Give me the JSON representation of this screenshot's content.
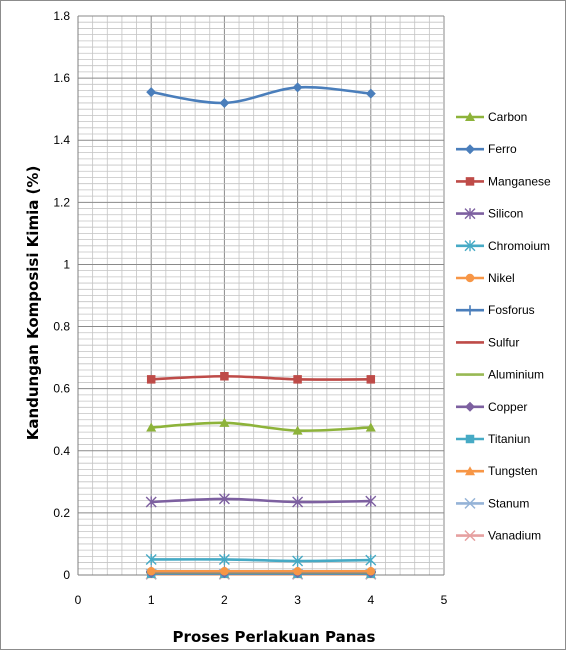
{
  "chart_data": {
    "type": "scatter",
    "xlabel": "Proses Perlakuan Panas",
    "ylabel": "Kandungan Komposisi Kimia (%)",
    "xlim": [
      0,
      5
    ],
    "ylim": [
      0,
      1.8
    ],
    "x_ticks": [
      "0",
      "1",
      "2",
      "3",
      "4",
      "5"
    ],
    "y_ticks": [
      "0",
      "0.2",
      "0.4",
      "0.6",
      "0.8",
      "1",
      "1.2",
      "1.4",
      "1.6",
      "1.8"
    ],
    "grid": true,
    "minor_grid": true,
    "legend_position": "right",
    "x": [
      1,
      2,
      3,
      4
    ],
    "series": [
      {
        "name": "Carbon",
        "values": [
          0.475,
          0.49,
          0.465,
          0.475
        ],
        "color": "#8db33a",
        "marker": "triangle"
      },
      {
        "name": "Ferro",
        "values": [
          1.555,
          1.52,
          1.57,
          1.55
        ],
        "color": "#4a7ebb",
        "marker": "diamond"
      },
      {
        "name": "Manganese",
        "values": [
          0.63,
          0.64,
          0.63,
          0.63
        ],
        "color": "#be4b48",
        "marker": "square"
      },
      {
        "name": "Silicon",
        "values": [
          0.235,
          0.245,
          0.235,
          0.238
        ],
        "color": "#7d60a0",
        "marker": "xstar"
      },
      {
        "name": "Chromoium",
        "values": [
          0.05,
          0.05,
          0.045,
          0.048
        ],
        "color": "#46aac5",
        "marker": "xstar"
      },
      {
        "name": "Nikel",
        "values": [
          0.012,
          0.012,
          0.012,
          0.012
        ],
        "color": "#f79646",
        "marker": "circle"
      },
      {
        "name": "Fosforus",
        "values": [
          0.01,
          0.01,
          0.01,
          0.01
        ],
        "color": "#4a7ebb",
        "marker": "plus"
      },
      {
        "name": "Sulfur",
        "values": [
          0.01,
          0.01,
          0.01,
          0.01
        ],
        "color": "#be4b48",
        "marker": "dash"
      },
      {
        "name": "Aluminium",
        "values": [
          0.008,
          0.008,
          0.008,
          0.008
        ],
        "color": "#98b954",
        "marker": "dash"
      },
      {
        "name": "Copper",
        "values": [
          0.006,
          0.006,
          0.006,
          0.006
        ],
        "color": "#7d60a0",
        "marker": "diamond"
      },
      {
        "name": "Titaniun",
        "values": [
          0.004,
          0.004,
          0.004,
          0.004
        ],
        "color": "#46aac5",
        "marker": "square"
      },
      {
        "name": "Tungsten",
        "values": [
          0.003,
          0.003,
          0.003,
          0.003
        ],
        "color": "#f79646",
        "marker": "triangle"
      },
      {
        "name": "Stanum",
        "values": [
          0.003,
          0.003,
          0.003,
          0.003
        ],
        "color": "#95b3d7",
        "marker": "xmark"
      },
      {
        "name": "Vanadium",
        "values": [
          0.002,
          0.002,
          0.002,
          0.002
        ],
        "color": "#e6a0a0",
        "marker": "xmark"
      }
    ]
  }
}
